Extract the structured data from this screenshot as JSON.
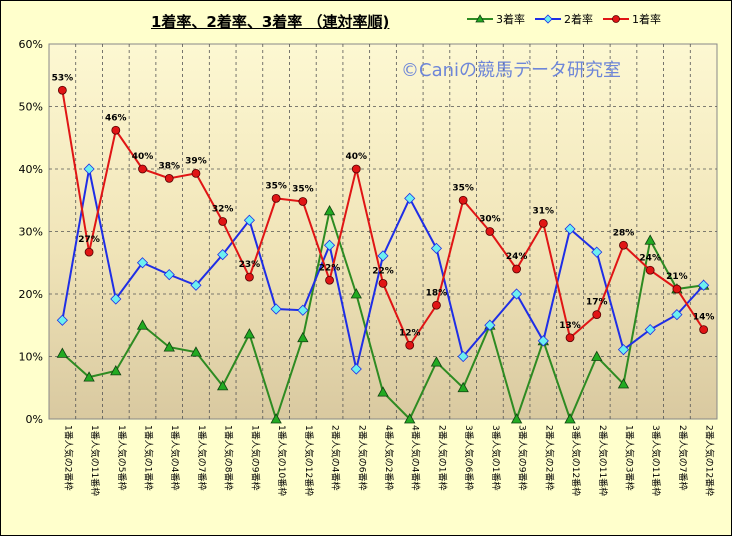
{
  "chart_data": {
    "type": "line",
    "title": "1着率、2着率、3着率 （連対率順)",
    "watermark": "©Caniの競馬データ研究室",
    "ylim": [
      0,
      60
    ],
    "yticks": [
      "0%",
      "10%",
      "20%",
      "30%",
      "40%",
      "50%",
      "60%"
    ],
    "grid": true,
    "legend_position": "top-right",
    "categories": [
      "1番人気の2番枠",
      "1番人気の11番枠",
      "1番人気の5番枠",
      "1番人気の1番枠",
      "1番人気の4番枠",
      "1番人気の7番枠",
      "1番人気の8番枠",
      "1番人気の9番枠",
      "1番人気の10番枠",
      "1番人気の12番枠",
      "2番人気の4番枠",
      "2番人気の6番枠",
      "4番人気の2番枠",
      "4番人気の4番枠",
      "2番人気の1番枠",
      "3番人気の6番枠",
      "3番人気の1番枠",
      "3番人気の9番枠",
      "2番人気の2番枠",
      "3番人気の12番枠",
      "2番人気の11番枠",
      "1番人気の3番枠",
      "3番人気の11番枠",
      "2番人気の7番枠",
      "2番人気の12番枠"
    ],
    "series": [
      {
        "name": "3着率",
        "color": "#2e8b22",
        "marker": "triangle",
        "values": [
          10.5,
          6.7,
          7.7,
          15.0,
          11.5,
          10.7,
          5.3,
          13.6,
          0,
          13.0,
          33.3,
          20.0,
          4.3,
          0,
          9.1,
          5.0,
          15.0,
          0,
          12.5,
          0,
          10.0,
          5.6,
          28.6,
          20.8,
          21.4
        ]
      },
      {
        "name": "2着率",
        "color": "#1f2ee6",
        "marker": "diamond",
        "values": [
          15.8,
          40.0,
          19.2,
          25.0,
          23.1,
          21.4,
          26.3,
          31.8,
          17.6,
          17.4,
          27.8,
          8.0,
          26.1,
          35.3,
          27.3,
          10.0,
          15.0,
          20.0,
          12.5,
          30.4,
          26.7,
          11.1,
          14.3,
          16.7,
          21.4
        ]
      },
      {
        "name": "1着率",
        "color": "#e01515",
        "marker": "circle",
        "values": [
          52.6,
          26.7,
          46.2,
          40.0,
          38.5,
          39.3,
          31.6,
          22.7,
          35.3,
          34.8,
          22.2,
          40.0,
          21.7,
          11.8,
          18.2,
          35.0,
          30.0,
          24.0,
          31.3,
          13.0,
          16.7,
          27.8,
          23.8,
          20.8,
          14.3
        ],
        "labels": [
          "53%",
          "27%",
          "46%",
          "40%",
          "38%",
          "39%",
          "32%",
          "23%",
          "35%",
          "35%",
          "22%",
          "40%",
          "22%",
          "12%",
          "18%",
          "35%",
          "30%",
          "24%",
          "31%",
          "13%",
          "17%",
          "28%",
          "24%",
          "21%",
          "14%"
        ]
      }
    ]
  }
}
